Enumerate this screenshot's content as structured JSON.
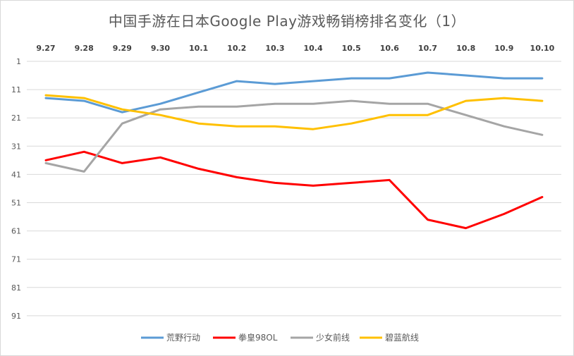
{
  "chart_data": {
    "type": "line",
    "title": "中国手游在日本Google Play游戏畅销榜排名变化（1）",
    "categories": [
      "9.27",
      "9.28",
      "9.29",
      "9.30",
      "10.1",
      "10.2",
      "10.3",
      "10.4",
      "10.5",
      "10.6",
      "10.7",
      "10.8",
      "10.9",
      "10.10"
    ],
    "y_ticks": [
      1,
      11,
      21,
      31,
      41,
      51,
      61,
      71,
      81,
      91
    ],
    "ylim": [
      1,
      100
    ],
    "y_reversed": true,
    "x_axis_position": "top",
    "grid": true,
    "legend_position": "bottom",
    "series": [
      {
        "name": "荒野行动",
        "color": "#5b9bd5",
        "values": [
          14,
          15,
          19,
          16,
          12,
          8,
          9,
          8,
          7,
          7,
          5,
          6,
          7,
          7
        ]
      },
      {
        "name": "拳皇98OL",
        "color": "#ff0000",
        "values": [
          36,
          33,
          37,
          35,
          39,
          42,
          44,
          45,
          44,
          43,
          57,
          60,
          55,
          49
        ]
      },
      {
        "name": "少女前线",
        "color": "#a5a5a5",
        "values": [
          37,
          40,
          23,
          18,
          17,
          17,
          16,
          16,
          15,
          16,
          16,
          20,
          24,
          27
        ]
      },
      {
        "name": "碧蓝航线",
        "color": "#ffc000",
        "values": [
          13,
          14,
          18,
          20,
          23,
          24,
          24,
          25,
          23,
          20,
          20,
          15,
          14,
          15
        ]
      }
    ]
  }
}
